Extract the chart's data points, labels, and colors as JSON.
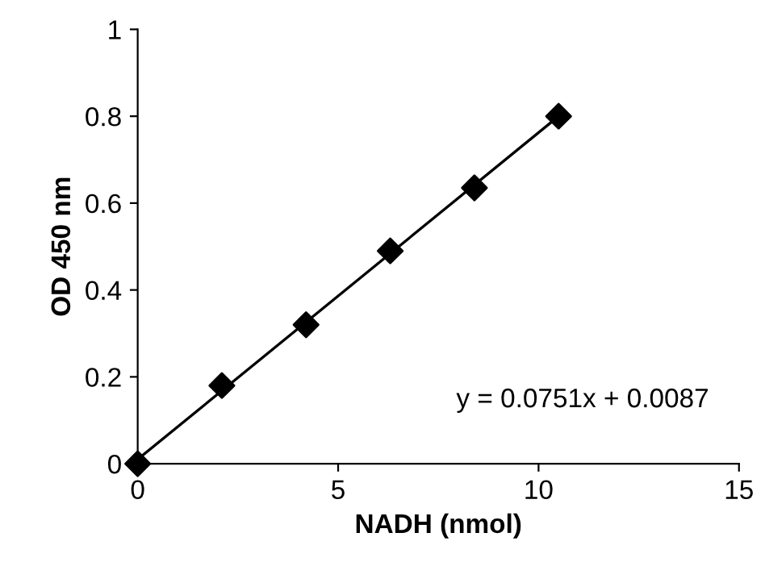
{
  "chart_data": {
    "type": "scatter",
    "xlabel": "NADH (nmol)",
    "ylabel": "OD 450 nm",
    "series": [
      {
        "color": "#000000",
        "marker": "diamond",
        "x": [
          0,
          2.1,
          4.2,
          6.3,
          8.4,
          10.5
        ],
        "values": [
          0,
          0.18,
          0.32,
          0.49,
          0.635,
          0.8
        ]
      },
      {
        "type": "line",
        "color": "#000000",
        "marker": "none",
        "line_style": "solid",
        "x": [
          0,
          10.5
        ],
        "values": [
          0.01,
          0.8
        ]
      }
    ],
    "xlim": [
      0,
      15
    ],
    "xticks": [
      0,
      5,
      10,
      15
    ],
    "ylim": [
      0,
      1
    ],
    "yticks": [
      0,
      0.2,
      0.4,
      0.6,
      0.8,
      1
    ],
    "grid": false,
    "legend": false,
    "annotations": [
      "y = 0.0751x + 0.0087"
    ]
  }
}
